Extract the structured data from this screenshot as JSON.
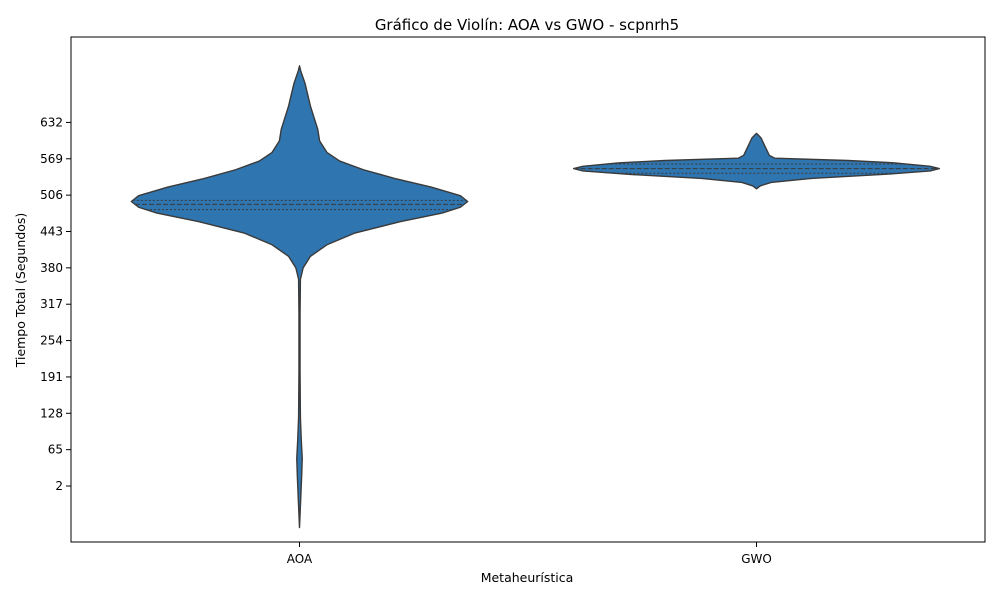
{
  "chart_data": {
    "type": "violin",
    "title": "Gráfico de Violín: AOA vs GWO - scpnrh5",
    "xlabel": "Metaheurística",
    "ylabel": "Tiempo Total (Segundos)",
    "categories": [
      "AOA",
      "GWO"
    ],
    "y_ticks": [
      2,
      65,
      128,
      191,
      254,
      317,
      380,
      443,
      506,
      569,
      632
    ],
    "ylim": [
      -95,
      780
    ],
    "grid": false,
    "fill_color": "#2f75b0",
    "edge_color": "#3a3a3a",
    "violins": [
      {
        "name": "AOA",
        "quartiles": [
          481,
          490,
          497
        ],
        "profile": [
          [
            -70,
            0.0
          ],
          [
            -40,
            0.004
          ],
          [
            -10,
            0.008
          ],
          [
            20,
            0.012
          ],
          [
            50,
            0.015
          ],
          [
            80,
            0.01
          ],
          [
            120,
            0.005
          ],
          [
            200,
            0.003
          ],
          [
            300,
            0.003
          ],
          [
            360,
            0.005
          ],
          [
            380,
            0.02
          ],
          [
            400,
            0.06
          ],
          [
            420,
            0.15
          ],
          [
            440,
            0.3
          ],
          [
            460,
            0.55
          ],
          [
            475,
            0.78
          ],
          [
            485,
            0.88
          ],
          [
            495,
            0.92
          ],
          [
            505,
            0.88
          ],
          [
            520,
            0.72
          ],
          [
            535,
            0.52
          ],
          [
            550,
            0.35
          ],
          [
            565,
            0.22
          ],
          [
            580,
            0.15
          ],
          [
            600,
            0.11
          ],
          [
            620,
            0.1
          ],
          [
            640,
            0.08
          ],
          [
            660,
            0.06
          ],
          [
            680,
            0.045
          ],
          [
            700,
            0.03
          ],
          [
            720,
            0.008
          ],
          [
            730,
            0.0
          ]
        ]
      },
      {
        "name": "GWO",
        "quartiles": [
          544,
          552,
          560
        ],
        "profile": [
          [
            517,
            0.0
          ],
          [
            522,
            0.02
          ],
          [
            528,
            0.08
          ],
          [
            535,
            0.3
          ],
          [
            542,
            0.7
          ],
          [
            548,
            0.95
          ],
          [
            552,
            1.0
          ],
          [
            556,
            0.95
          ],
          [
            562,
            0.75
          ],
          [
            566,
            0.5
          ],
          [
            570,
            0.1
          ],
          [
            575,
            0.07
          ],
          [
            585,
            0.055
          ],
          [
            595,
            0.04
          ],
          [
            605,
            0.025
          ],
          [
            610,
            0.01
          ],
          [
            613,
            0.0
          ]
        ]
      }
    ]
  }
}
